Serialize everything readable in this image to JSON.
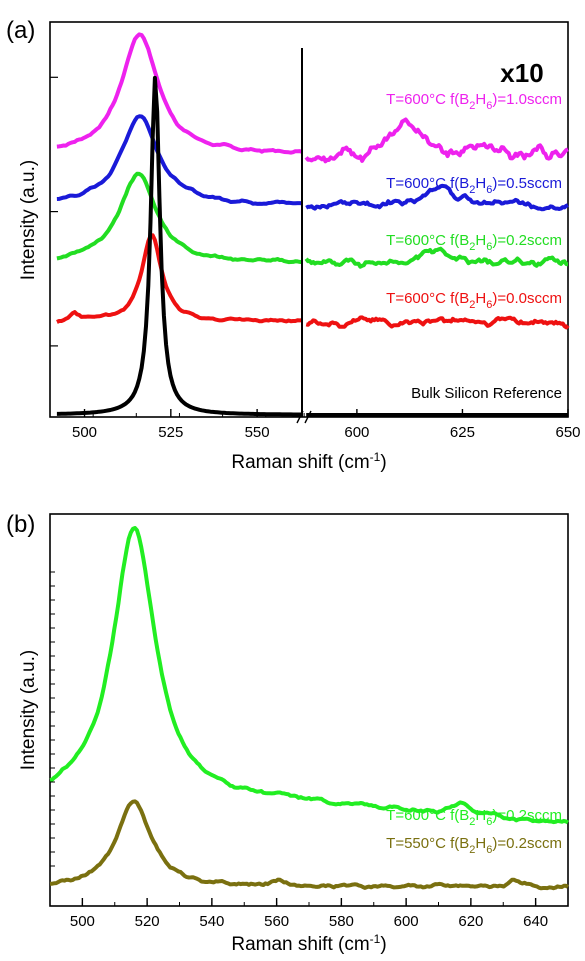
{
  "chart_data": [
    {
      "panel_label": "(a)",
      "type": "line",
      "xlabel": "Raman shift (cm",
      "xlabel_sup": "-1",
      "xlabel_close": ")",
      "ylabel": "Intensity (a.u.)",
      "axis_break": true,
      "left_segment": {
        "xlim": [
          490,
          563
        ],
        "xticks": [
          "500",
          "525",
          "550"
        ]
      },
      "right_segment": {
        "xlim": [
          587,
          650
        ],
        "xticks": [
          "600",
          "625",
          "650"
        ]
      },
      "scale_annotation": "x10",
      "series": [
        {
          "label_parts": {
            "pre": "T=600°C f(B",
            "s1": "2",
            "mid": "H",
            "s2": "6",
            "post": ")=1.0sccm"
          },
          "color": "#ee22ee",
          "baseline": 0.67,
          "peak_center": 516,
          "peak_height": 0.31,
          "peak_width": 6.5
        },
        {
          "label_parts": {
            "pre": "T=600°C f(B",
            "s1": "2",
            "mid": "H",
            "s2": "6",
            "post": ")=0.5sccm"
          },
          "color": "#1a1ad8",
          "baseline": 0.54,
          "peak_center": 516,
          "peak_height": 0.23,
          "peak_width": 6.5
        },
        {
          "label_parts": {
            "pre": "T=600°C f(B",
            "s1": "2",
            "mid": "H",
            "s2": "6",
            "post": ")=0.2sccm"
          },
          "color": "#22dd22",
          "baseline": 0.39,
          "peak_center": 515.5,
          "peak_height": 0.23,
          "peak_width": 6.5
        },
        {
          "label_parts": {
            "pre": "T=600°C f(B",
            "s1": "2",
            "mid": "H",
            "s2": "6",
            "post": ")=0.0sccm"
          },
          "color": "#ee1111",
          "baseline": 0.24,
          "peak_center": 519.5,
          "peak_height": 0.22,
          "peak_width": 3.5
        },
        {
          "label_parts": {
            "pre": "Bulk Silicon Reference",
            "s1": "",
            "mid": "",
            "s2": "",
            "post": ""
          },
          "color": "#000000",
          "baseline": 0.0,
          "peak_center": 520.5,
          "peak_height": 0.87,
          "peak_width": 1.6
        }
      ]
    },
    {
      "panel_label": "(b)",
      "type": "line",
      "xlabel": "Raman shift (cm",
      "xlabel_sup": "-1",
      "xlabel_close": ")",
      "ylabel": "Intensity (a.u.)",
      "xlim": [
        490,
        650
      ],
      "xticks": [
        "500",
        "520",
        "540",
        "560",
        "580",
        "600",
        "620",
        "640"
      ],
      "series": [
        {
          "label_parts": {
            "pre": "T=600°C f(B",
            "s1": "2",
            "mid": "H",
            "s2": "6",
            "post": ")=0.2sccm"
          },
          "color": "#22ee22",
          "baseline": 0.26,
          "peak_center": 516,
          "peak_height": 0.72,
          "peak_width": 8
        },
        {
          "label_parts": {
            "pre": "T=550°C f(B",
            "s1": "2",
            "mid": "H",
            "s2": "6",
            "post": ")=0.2sccm"
          },
          "color": "#7a7010",
          "baseline": 0.04,
          "peak_center": 516,
          "peak_height": 0.22,
          "peak_width": 6.5
        }
      ]
    }
  ]
}
